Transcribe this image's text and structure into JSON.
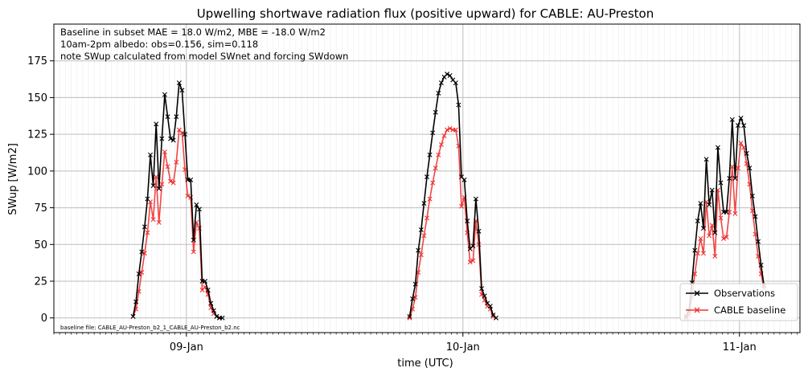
{
  "chart_data": {
    "type": "line",
    "title": "Upwelling shortwave radiation flux (positive upward) for CABLE: AU-Preston",
    "xlabel": "time (UTC)",
    "ylabel": "SWup [W/m2]",
    "ylim": [
      -10,
      200
    ],
    "yticks": [
      0,
      25,
      50,
      75,
      100,
      125,
      150,
      175
    ],
    "xlim_hours": [
      -23,
      106.5
    ],
    "xticks": [
      {
        "hour": 0,
        "label": "09-Jan"
      },
      {
        "hour": 48,
        "label": "10-Jan"
      },
      {
        "hour": 96,
        "label": "11-Jan"
      }
    ],
    "grid": true,
    "legend_position": "lower-right",
    "annotations": [
      "Baseline in subset MAE = 18.0 W/m2, MBE = -18.0 W/m2",
      "10am-2pm albedo: obs=0.156, sim=0.118",
      "note SWup calculated from model SWnet and forcing SWdown"
    ],
    "footnote": "baseline file: CABLE_AU-Preston_b2_1_CABLE_AU-Preston_b2.nc",
    "series": [
      {
        "name": "Observations",
        "color": "#000000",
        "marker": "x",
        "segments": [
          [
            [
              -9.25,
              1
            ],
            [
              -8.75,
              11
            ],
            [
              -8.25,
              30
            ],
            [
              -7.75,
              45
            ],
            [
              -7.25,
              62
            ],
            [
              -6.75,
              81
            ],
            [
              -6.25,
              111
            ],
            [
              -5.75,
              90
            ],
            [
              -5.25,
              132
            ],
            [
              -4.75,
              88
            ],
            [
              -4.25,
              122
            ],
            [
              -3.75,
              152
            ],
            [
              -3.25,
              137
            ],
            [
              -2.75,
              122
            ],
            [
              -2.25,
              121
            ],
            [
              -1.75,
              137
            ],
            [
              -1.25,
              160
            ],
            [
              -0.75,
              155
            ],
            [
              -0.25,
              125
            ],
            [
              0.25,
              94
            ],
            [
              0.75,
              94
            ],
            [
              1.25,
              53
            ],
            [
              1.75,
              77
            ],
            [
              2.25,
              74
            ],
            [
              2.75,
              25
            ],
            [
              3.25,
              25
            ],
            [
              3.75,
              19
            ],
            [
              4.25,
              10
            ],
            [
              4.75,
              5
            ],
            [
              5.25,
              1
            ],
            [
              5.75,
              0
            ],
            [
              6.25,
              0
            ]
          ],
          [
            [
              38.75,
              1
            ],
            [
              39.25,
              13
            ],
            [
              39.75,
              23
            ],
            [
              40.25,
              46
            ],
            [
              40.75,
              60
            ],
            [
              41.25,
              78
            ],
            [
              41.75,
              96
            ],
            [
              42.25,
              111
            ],
            [
              42.75,
              126
            ],
            [
              43.25,
              140
            ],
            [
              43.75,
              153
            ],
            [
              44.25,
              160
            ],
            [
              44.75,
              164
            ],
            [
              45.25,
              166
            ],
            [
              45.75,
              165
            ],
            [
              46.25,
              162
            ],
            [
              46.75,
              160
            ],
            [
              47.25,
              145
            ],
            [
              47.75,
              96
            ],
            [
              48.25,
              94
            ],
            [
              48.75,
              66
            ],
            [
              49.25,
              47
            ],
            [
              49.75,
              49
            ],
            [
              50.25,
              81
            ],
            [
              50.75,
              59
            ],
            [
              51.25,
              20
            ],
            [
              51.75,
              15
            ],
            [
              52.25,
              10
            ],
            [
              52.75,
              8
            ],
            [
              53.25,
              2
            ],
            [
              53.75,
              0
            ]
          ],
          [
            [
              86.75,
              1
            ],
            [
              87.25,
              5
            ],
            [
              87.75,
              24
            ],
            [
              88.25,
              46
            ],
            [
              88.75,
              66
            ],
            [
              89.25,
              78
            ],
            [
              89.75,
              61
            ],
            [
              90.25,
              108
            ],
            [
              90.75,
              77
            ],
            [
              91.25,
              87
            ],
            [
              91.75,
              58
            ],
            [
              92.25,
              116
            ],
            [
              92.75,
              92
            ],
            [
              93.25,
              72
            ],
            [
              93.75,
              72
            ],
            [
              94.25,
              95
            ],
            [
              94.75,
              135
            ],
            [
              95.25,
              95
            ],
            [
              95.75,
              131
            ],
            [
              96.25,
              136
            ],
            [
              96.75,
              131
            ],
            [
              97.25,
              112
            ],
            [
              97.75,
              102
            ],
            [
              98.25,
              83
            ],
            [
              98.75,
              69
            ],
            [
              99.25,
              52
            ],
            [
              99.75,
              36
            ],
            [
              100.25,
              22
            ]
          ]
        ]
      },
      {
        "name": "CABLE baseline",
        "color": "#f03232",
        "marker": "x",
        "segments": [
          [
            [
              -9.25,
              1
            ],
            [
              -8.75,
              6
            ],
            [
              -8.25,
              18
            ],
            [
              -7.75,
              31
            ],
            [
              -7.25,
              44
            ],
            [
              -6.75,
              58
            ],
            [
              -6.25,
              79
            ],
            [
              -5.75,
              67
            ],
            [
              -5.25,
              96
            ],
            [
              -4.75,
              65
            ],
            [
              -4.25,
              91
            ],
            [
              -3.75,
              113
            ],
            [
              -3.25,
              103
            ],
            [
              -2.75,
              93
            ],
            [
              -2.25,
              92
            ],
            [
              -1.75,
              106
            ],
            [
              -1.25,
              128
            ],
            [
              -0.75,
              126
            ],
            [
              -0.25,
              101
            ],
            [
              0.25,
              83
            ],
            [
              0.75,
              82
            ],
            [
              1.25,
              45
            ],
            [
              1.75,
              65
            ],
            [
              2.25,
              61
            ],
            [
              2.75,
              19
            ],
            [
              3.25,
              21
            ],
            [
              3.75,
              16
            ],
            [
              4.25,
              7
            ],
            [
              4.75,
              3
            ],
            [
              5.25,
              1
            ],
            [
              5.75,
              0
            ]
          ],
          [
            [
              38.75,
              0
            ],
            [
              39.25,
              6
            ],
            [
              39.75,
              14
            ],
            [
              40.25,
              31
            ],
            [
              40.75,
              43
            ],
            [
              41.25,
              56
            ],
            [
              41.75,
              68
            ],
            [
              42.25,
              81
            ],
            [
              42.75,
              92
            ],
            [
              43.25,
              102
            ],
            [
              43.75,
              111
            ],
            [
              44.25,
              118
            ],
            [
              44.75,
              124
            ],
            [
              45.25,
              128
            ],
            [
              45.75,
              129
            ],
            [
              46.25,
              128
            ],
            [
              46.75,
              128
            ],
            [
              47.25,
              117
            ],
            [
              47.75,
              76
            ],
            [
              48.25,
              82
            ],
            [
              48.75,
              58
            ],
            [
              49.25,
              38
            ],
            [
              49.75,
              39
            ],
            [
              50.25,
              66
            ],
            [
              50.75,
              50
            ],
            [
              51.25,
              16
            ],
            [
              51.75,
              12
            ],
            [
              52.25,
              8
            ],
            [
              52.75,
              6
            ],
            [
              53.25,
              1
            ]
          ],
          [
            [
              86.75,
              0
            ],
            [
              87.25,
              2
            ],
            [
              87.75,
              14
            ],
            [
              88.25,
              30
            ],
            [
              88.75,
              44
            ],
            [
              89.25,
              54
            ],
            [
              89.75,
              44
            ],
            [
              90.25,
              79
            ],
            [
              90.75,
              56
            ],
            [
              91.25,
              63
            ],
            [
              91.75,
              42
            ],
            [
              92.25,
              87
            ],
            [
              92.75,
              68
            ],
            [
              93.25,
              54
            ],
            [
              93.75,
              55
            ],
            [
              94.25,
              72
            ],
            [
              94.75,
              103
            ],
            [
              95.25,
              71
            ],
            [
              95.75,
              102
            ],
            [
              96.25,
              119
            ],
            [
              96.75,
              116
            ],
            [
              97.25,
              105
            ],
            [
              97.75,
              91
            ],
            [
              98.25,
              73
            ],
            [
              98.75,
              57
            ],
            [
              99.25,
              42
            ],
            [
              99.75,
              30
            ],
            [
              100.25,
              20
            ]
          ]
        ]
      }
    ]
  }
}
